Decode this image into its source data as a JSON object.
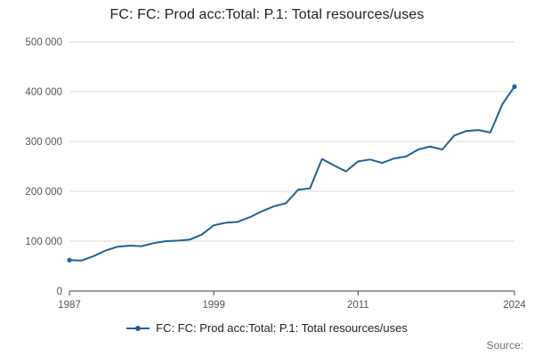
{
  "title": "FC: FC: Prod acc:Total: P.1: Total resources/uses",
  "legend": {
    "label": "FC: FC: Prod acc:Total: P.1: Total resources/uses"
  },
  "source_label": "Source:",
  "colors": {
    "series": "#206095",
    "grid": "#d9d9d9",
    "axis": "#414042",
    "tick_label": "#555555",
    "title": "#222222",
    "source": "#707070"
  },
  "chart_data": {
    "type": "line",
    "title": "FC: FC: Prod acc:Total: P.1: Total resources/uses",
    "xlabel": "",
    "ylabel": "",
    "x": [
      1987,
      1988,
      1989,
      1990,
      1991,
      1992,
      1993,
      1994,
      1995,
      1996,
      1997,
      1998,
      1999,
      2000,
      2001,
      2002,
      2003,
      2004,
      2005,
      2006,
      2007,
      2008,
      2009,
      2010,
      2011,
      2012,
      2013,
      2014,
      2015,
      2016,
      2017,
      2018,
      2019,
      2020,
      2021,
      2022,
      2023,
      2024
    ],
    "values": [
      62000,
      61000,
      70000,
      81000,
      89000,
      91000,
      90000,
      96000,
      100000,
      101000,
      103000,
      113000,
      132000,
      137000,
      139000,
      148000,
      160000,
      170000,
      176000,
      203000,
      206000,
      265000,
      252000,
      240000,
      260000,
      264000,
      257000,
      266000,
      270000,
      284000,
      290000,
      284000,
      312000,
      321000,
      323000,
      318000,
      375000,
      410000
    ],
    "series_name": "FC: FC: Prod acc:Total: P.1: Total resources/uses",
    "ylim": [
      0,
      500000
    ],
    "yticks": [
      0,
      100000,
      200000,
      300000,
      400000,
      500000
    ],
    "ytick_labels": [
      "0",
      "100 000",
      "200 000",
      "300 000",
      "400 000",
      "500 000"
    ],
    "xticks": [
      1987,
      1999,
      2011,
      2024
    ],
    "grid": true,
    "legend_position": "bottom"
  }
}
